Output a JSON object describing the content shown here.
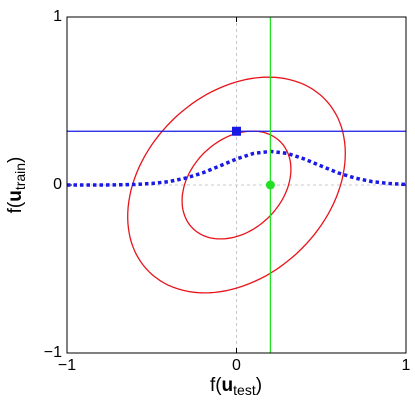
{
  "chart_data": {
    "type": "line",
    "xlabel": {
      "prefix": "f(",
      "bold": "u",
      "sub": "test",
      "suffix": ")"
    },
    "ylabel": {
      "prefix": "f(",
      "bold": "u",
      "sub": "train",
      "suffix": ")"
    },
    "xlim": [
      -1,
      1
    ],
    "ylim": [
      -1,
      1
    ],
    "xticks": [
      {
        "value": -1,
        "label": "−1"
      },
      0,
      1
    ],
    "yticks": [
      {
        "value": -1,
        "label": "−1"
      },
      0,
      1
    ],
    "zero_lines": true,
    "ellipses": [
      {
        "color": "#e8141c",
        "cx": 0,
        "cy": 0,
        "a": 0.365,
        "b": 0.27,
        "angle": 45
      },
      {
        "color": "#e8141c",
        "cx": 0,
        "cy": 0,
        "a": 0.73,
        "b": 0.54,
        "angle": 45
      }
    ],
    "series": [
      {
        "color": "#1a1ae6",
        "style": "dotted",
        "x": [
          -1,
          -0.9,
          -0.8,
          -0.7,
          -0.6,
          -0.5,
          -0.4,
          -0.3,
          -0.2,
          -0.1,
          0,
          0.1,
          0.2,
          0.3,
          0.4,
          0.5,
          0.6,
          0.7,
          0.8,
          0.9,
          1
        ],
        "values": [
          0,
          0,
          0,
          0.001,
          0.003,
          0.009,
          0.02,
          0.041,
          0.072,
          0.113,
          0.155,
          0.188,
          0.2,
          0.188,
          0.155,
          0.113,
          0.072,
          0.041,
          0.02,
          0.009,
          0.003
        ]
      }
    ],
    "hlines": [
      {
        "color": "#1a1ae6",
        "value": 0.32
      }
    ],
    "vlines": [
      {
        "color": "#22e022",
        "value": 0.2
      }
    ],
    "points": [
      {
        "color": "#1a1ae6",
        "shape": "square",
        "x": 0,
        "y": 0.32
      },
      {
        "color": "#22e022",
        "shape": "circle",
        "x": 0.2,
        "y": 0
      }
    ]
  }
}
